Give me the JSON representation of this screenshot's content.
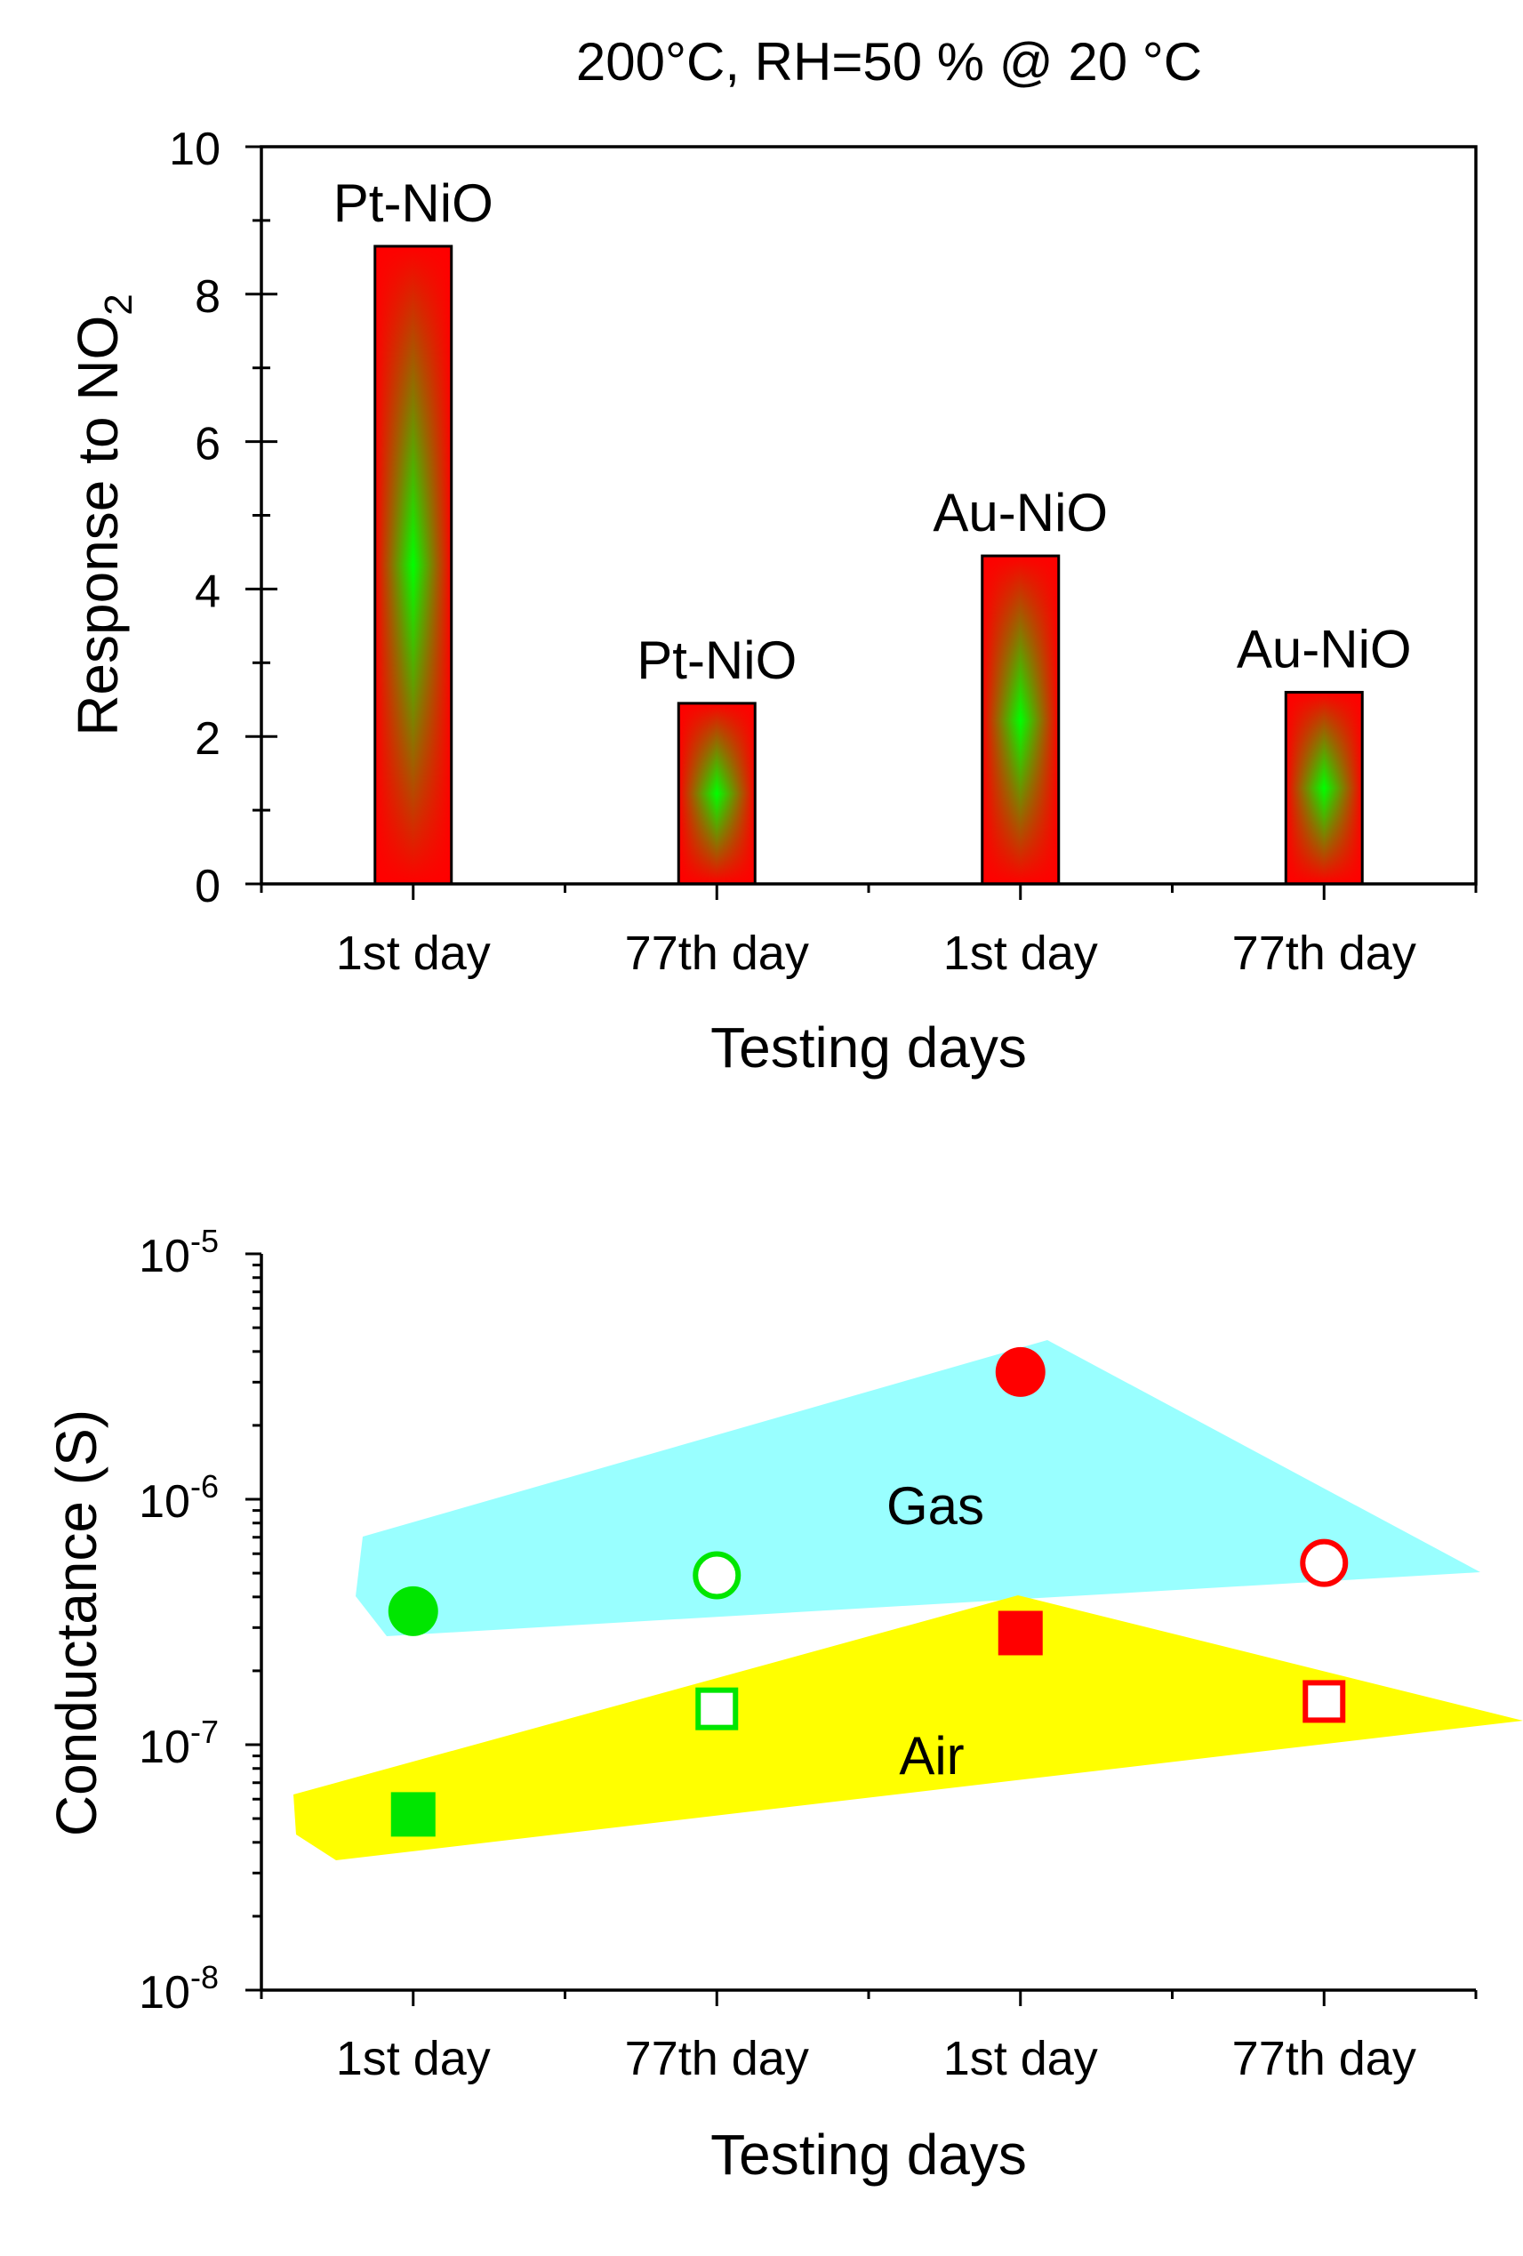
{
  "figure_title": "200°C, RH=50 % @ 20 °C",
  "chart_data": [
    {
      "type": "bar",
      "title": "200°C, RH=50 % @ 20 °C",
      "xlabel": "Testing days",
      "ylabel_main": "Response to NO",
      "ylabel_sub": "2",
      "ylim": [
        0,
        10
      ],
      "yticks": [
        "0",
        "2",
        "4",
        "6",
        "8",
        "10"
      ],
      "categories": [
        "1st day",
        "77th day",
        "1st day",
        "77th day"
      ],
      "values": [
        8.65,
        2.45,
        4.45,
        2.6
      ],
      "bar_labels": [
        "Pt-NiO",
        "Pt-NiO",
        "Au-NiO",
        "Au-NiO"
      ],
      "colors": {
        "edge": "#ff0000",
        "center": "#00ff00",
        "outline": "#000000"
      }
    },
    {
      "type": "scatter",
      "yscale": "log",
      "xlabel": "Testing days",
      "ylabel": "Conductance (S)",
      "ylim": [
        1e-08,
        1e-05
      ],
      "yticks": [
        {
          "base": "10",
          "exp": "-8"
        },
        {
          "base": "10",
          "exp": "-7"
        },
        {
          "base": "10",
          "exp": "-6"
        },
        {
          "base": "10",
          "exp": "-5"
        }
      ],
      "categories": [
        "1st day",
        "77th day",
        "1st day",
        "77th day"
      ],
      "series": [
        {
          "name": "Gas",
          "values": [
            3.5e-07,
            4.9e-07,
            3.3e-06,
            5.5e-07
          ],
          "marker": "circle",
          "filled": [
            true,
            false,
            true,
            false
          ],
          "colors": [
            "#00e600",
            "#00e600",
            "#ff0000",
            "#ff0000"
          ]
        },
        {
          "name": "Air",
          "values": [
            5.2e-08,
            1.4e-07,
            2.85e-07,
            1.5e-07
          ],
          "marker": "square",
          "filled": [
            true,
            false,
            true,
            false
          ],
          "colors": [
            "#00e600",
            "#00e600",
            "#ff0000",
            "#ff0000"
          ]
        }
      ],
      "regions": [
        {
          "label": "Gas",
          "color": "#99ffff"
        },
        {
          "label": "Air",
          "color": "#ffff00"
        }
      ]
    }
  ]
}
